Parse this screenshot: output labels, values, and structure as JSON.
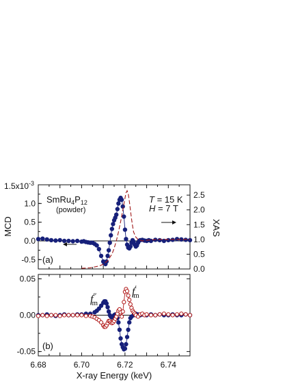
{
  "chart_data": [
    {
      "panel": "(a)",
      "type": "scatter",
      "annotations": {
        "compound_base": "SmRu",
        "compound_sub1": "4",
        "compound_mid": "P",
        "compound_sub2": "12",
        "powder": "(powder)",
        "T_sym": "T",
        "T_val": " = 15 K",
        "H_sym": "H",
        "H_val": " = 7 T"
      },
      "ylabel": "MCD",
      "ylabel_right": "XAS",
      "y_exponent_label": "1.5x10",
      "y_exponent_power": "-3",
      "ylim": [
        -0.75,
        1.5
      ],
      "yticks": [
        "-0.5",
        "0.0",
        "0.5",
        "1.0"
      ],
      "ylim_right": [
        0.0,
        2.85
      ],
      "yticks_right": [
        "0.0",
        "0.5",
        "1.0",
        "1.5",
        "2.0",
        "2.5"
      ],
      "xlim": [
        6.68,
        6.75
      ],
      "series": [
        {
          "style": "filled-circles-with-line",
          "color": "#17207a",
          "axis": "left",
          "x": [
            6.68,
            6.682,
            6.684,
            6.686,
            6.688,
            6.69,
            6.692,
            6.694,
            6.696,
            6.698,
            6.7,
            6.701,
            6.702,
            6.703,
            6.704,
            6.705,
            6.706,
            6.707,
            6.708,
            6.709,
            6.71,
            6.7105,
            6.711,
            6.7115,
            6.712,
            6.7125,
            6.713,
            6.7135,
            6.714,
            6.7145,
            6.715,
            6.7155,
            6.716,
            6.7165,
            6.717,
            6.7175,
            6.718,
            6.7185,
            6.719,
            6.7195,
            6.72,
            6.7205,
            6.721,
            6.7215,
            6.722,
            6.7225,
            6.723,
            6.7235,
            6.724,
            6.7245,
            6.725,
            6.7255,
            6.726,
            6.7265,
            6.727,
            6.728,
            6.729,
            6.73,
            6.731,
            6.732,
            6.734,
            6.736,
            6.738,
            6.74,
            6.742,
            6.744,
            6.746,
            6.748,
            6.75
          ],
          "y": [
            0.05,
            0.06,
            0.04,
            0.02,
            0.01,
            0.02,
            0.0,
            0.0,
            -0.01,
            0.0,
            -0.02,
            -0.01,
            -0.03,
            -0.04,
            -0.05,
            -0.05,
            -0.08,
            -0.12,
            -0.22,
            -0.4,
            -0.55,
            -0.6,
            -0.62,
            -0.55,
            -0.4,
            -0.25,
            -0.05,
            0.15,
            0.32,
            0.45,
            0.55,
            0.62,
            0.7,
            0.85,
            1.0,
            1.1,
            1.15,
            1.1,
            0.92,
            0.65,
            0.3,
            0.05,
            -0.1,
            -0.18,
            -0.2,
            -0.15,
            -0.05,
            0.02,
            -0.02,
            -0.1,
            -0.15,
            -0.12,
            -0.05,
            0.0,
            0.02,
            0.03,
            0.01,
            0.0,
            0.02,
            0.0,
            0.03,
            0.02,
            0.0,
            0.02,
            0.03,
            0.05,
            0.04,
            0.03,
            0.02
          ]
        },
        {
          "style": "dashed-line",
          "color": "#a01818",
          "axis": "right",
          "x": [
            6.7,
            6.704,
            6.708,
            6.71,
            6.712,
            6.714,
            6.715,
            6.716,
            6.717,
            6.718,
            6.719,
            6.72,
            6.7205,
            6.721,
            6.7215,
            6.722,
            6.7225,
            6.723,
            6.7235,
            6.724,
            6.725,
            6.726,
            6.728,
            6.73,
            6.735,
            6.74,
            6.745,
            6.75
          ],
          "y": [
            0.02,
            0.04,
            0.1,
            0.16,
            0.28,
            0.5,
            0.7,
            0.95,
            1.25,
            1.6,
            2.0,
            2.4,
            2.58,
            2.65,
            2.55,
            2.3,
            2.0,
            1.7,
            1.45,
            1.25,
            1.08,
            1.0,
            0.95,
            0.97,
            1.0,
            1.0,
            1.0,
            1.0
          ]
        }
      ]
    },
    {
      "panel": "(b)",
      "type": "scatter",
      "ylim": [
        -0.056,
        0.056
      ],
      "yticks": [
        "0.05",
        "0.00",
        "-0.05"
      ],
      "xlim": [
        6.68,
        6.75
      ],
      "xticks": [
        "6.68",
        "6.70",
        "6.72",
        "6.74"
      ],
      "xlabel": "X-ray Energy  (keV)",
      "annotations": {
        "fpp_f": "f",
        "fpp_sub": "m",
        "fpp_prime": "″",
        "fp_f": "f",
        "fp_sub": "m",
        "fp_prime": "′"
      },
      "series": [
        {
          "name": "f″m",
          "style": "filled-circles-with-line",
          "color": "#17207a",
          "x": [
            6.68,
            6.682,
            6.684,
            6.686,
            6.688,
            6.69,
            6.692,
            6.694,
            6.696,
            6.698,
            6.7,
            6.702,
            6.704,
            6.706,
            6.707,
            6.708,
            6.709,
            6.71,
            6.7105,
            6.711,
            6.7115,
            6.712,
            6.7125,
            6.713,
            6.7135,
            6.714,
            6.7145,
            6.715,
            6.7155,
            6.716,
            6.7165,
            6.717,
            6.7175,
            6.718,
            6.7185,
            6.719,
            6.7195,
            6.72,
            6.7205,
            6.721,
            6.7215,
            6.722,
            6.7225,
            6.723,
            6.724,
            6.725,
            6.726,
            6.727,
            6.728,
            6.73,
            6.732,
            6.734,
            6.736,
            6.738,
            6.74,
            6.742,
            6.744,
            6.746,
            6.748,
            6.75
          ],
          "y": [
            0.0,
            0.0,
            0.001,
            0.0,
            -0.001,
            0.0,
            0.001,
            0.0,
            0.0,
            0.001,
            0.001,
            0.002,
            0.002,
            0.004,
            0.006,
            0.009,
            0.013,
            0.017,
            0.019,
            0.019,
            0.016,
            0.011,
            0.005,
            0.0,
            -0.002,
            -0.003,
            -0.002,
            0.0,
            0.001,
            0.0,
            -0.004,
            -0.01,
            -0.02,
            -0.032,
            -0.04,
            -0.044,
            -0.047,
            -0.046,
            -0.04,
            -0.03,
            -0.02,
            -0.01,
            -0.004,
            -0.002,
            0.0,
            0.002,
            0.001,
            0.0,
            0.001,
            0.0,
            0.001,
            0.0,
            0.001,
            0.0,
            0.0,
            0.001,
            0.0,
            0.0,
            0.001,
            0.0
          ]
        },
        {
          "name": "f′m",
          "style": "open-circles-with-line",
          "color": "#b01818",
          "x": [
            6.68,
            6.682,
            6.684,
            6.686,
            6.688,
            6.69,
            6.692,
            6.694,
            6.696,
            6.698,
            6.7,
            6.702,
            6.704,
            6.705,
            6.706,
            6.707,
            6.708,
            6.709,
            6.71,
            6.7105,
            6.711,
            6.7115,
            6.712,
            6.7125,
            6.713,
            6.7135,
            6.714,
            6.7145,
            6.715,
            6.7155,
            6.716,
            6.7165,
            6.717,
            6.7175,
            6.718,
            6.7185,
            6.719,
            6.7195,
            6.72,
            6.7205,
            6.721,
            6.7215,
            6.722,
            6.7225,
            6.723,
            6.7235,
            6.724,
            6.7245,
            6.725,
            6.726,
            6.727,
            6.728,
            6.729,
            6.73,
            6.732,
            6.734,
            6.736,
            6.738,
            6.74,
            6.742,
            6.744,
            6.746,
            6.748,
            6.75
          ],
          "y": [
            -0.001,
            0.0,
            -0.001,
            0.0,
            0.0,
            -0.001,
            0.0,
            0.0,
            0.0,
            0.0,
            0.0,
            -0.001,
            -0.001,
            -0.002,
            -0.003,
            -0.005,
            -0.007,
            -0.01,
            -0.014,
            -0.016,
            -0.016,
            -0.014,
            -0.011,
            -0.008,
            -0.008,
            -0.01,
            -0.011,
            -0.01,
            -0.008,
            -0.005,
            -0.002,
            0.002,
            0.006,
            0.008,
            0.004,
            -0.002,
            0.005,
            0.018,
            0.032,
            0.036,
            0.033,
            0.027,
            0.021,
            0.015,
            0.01,
            0.006,
            0.004,
            0.002,
            0.0,
            -0.002,
            0.001,
            0.002,
            0.0,
            0.001,
            0.0,
            0.0,
            0.001,
            0.002,
            0.001,
            0.0,
            0.001,
            0.002,
            0.001,
            0.0
          ]
        }
      ]
    }
  ]
}
